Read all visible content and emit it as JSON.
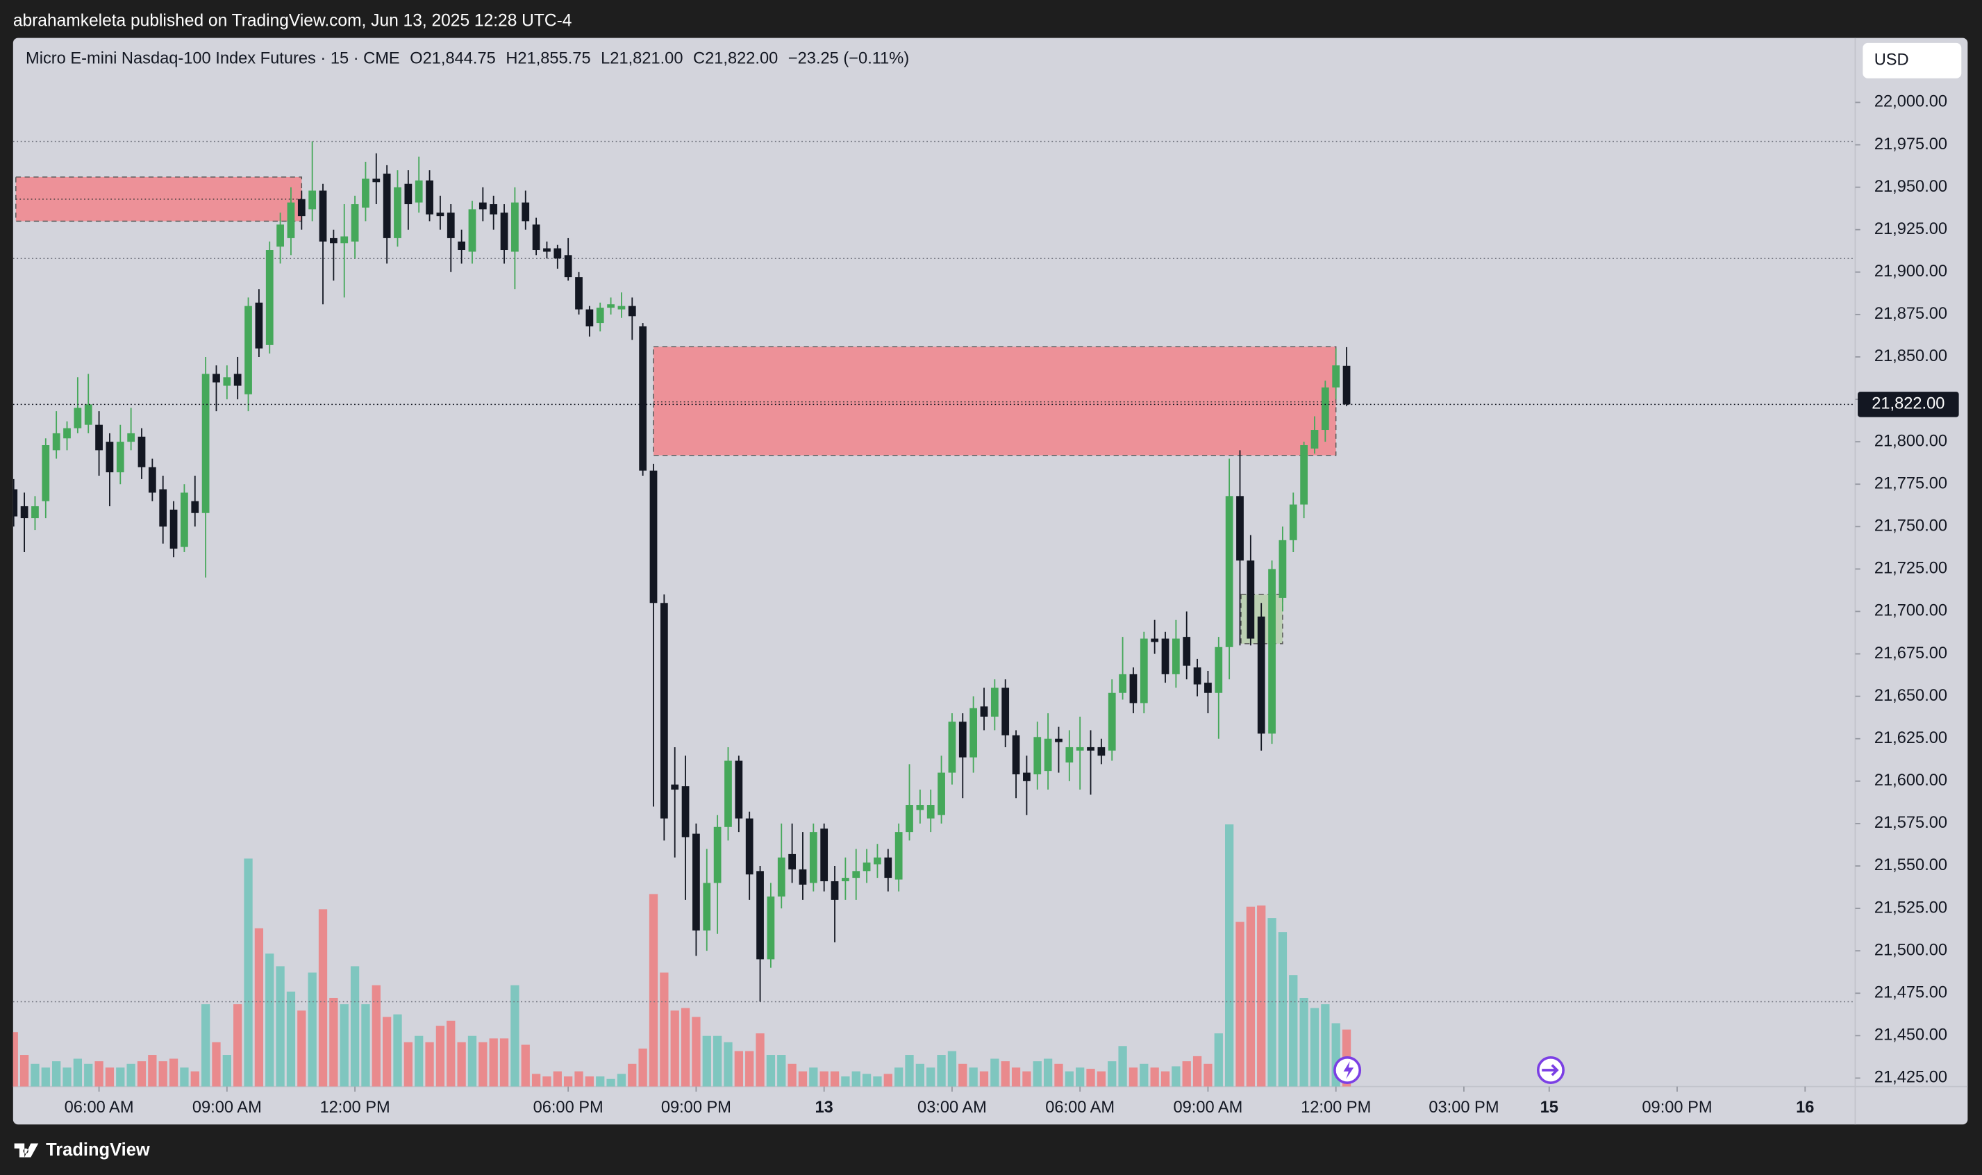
{
  "header": {
    "byline": "abrahamkeleta published on TradingView.com, Jun 13, 2025 12:28 UTC-4",
    "footer": "TradingView",
    "currency": "USD"
  },
  "chart_data": {
    "type": "candlestick",
    "title": "Micro E-mini Nasdaq-100 Index Futures · 15 · CME",
    "legend": {
      "open": "O21,844.75",
      "high": "H21,855.75",
      "low": "L21,821.00",
      "close": "C21,822.00",
      "change": "−23.25 (−0.11%)"
    },
    "up_color": "#45a85a",
    "down_color": "#131722",
    "volume_up_color": "#7fc6bf",
    "volume_down_color": "#e98a8d",
    "open": [
      21772,
      21762,
      21755,
      21765,
      21795,
      21802,
      21808,
      21810,
      21810,
      21800,
      21782,
      21800,
      21803,
      21785,
      21772,
      21760,
      21738,
      21765,
      21758,
      21840,
      21833,
      21840,
      21828,
      21882,
      21857,
      21915,
      21920,
      21943,
      21937,
      21948,
      21920,
      21917,
      21918,
      21938,
      21955,
      21958,
      21920,
      21952,
      21941,
      21954,
      21935,
      21935,
      21918,
      21912,
      21941,
      21940,
      21935,
      21912,
      21941,
      21928,
      21914,
      21914,
      21910,
      21897,
      21878,
      21870,
      21879,
      21878,
      21880,
      21868,
      21783,
      21705,
      21598,
      21597,
      21569,
      21512,
      21540,
      21573,
      21612,
      21578,
      21547,
      21495,
      21532,
      21557,
      21548,
      21540,
      21572,
      21541,
      21541,
      21543,
      21547,
      21551,
      21555,
      21542,
      21570,
      21583,
      21578,
      21580,
      21605,
      21635,
      21614,
      21644,
      21638,
      21655,
      21627,
      21605,
      21604,
      21606,
      21625,
      21611,
      21618,
      21620,
      21620,
      21618,
      21652,
      21663,
      21646,
      21684,
      21684,
      21663,
      21685,
      21667,
      21658,
      21652,
      21679,
      21768,
      21730,
      21697,
      21628,
      21708,
      21742,
      21763,
      21796,
      21807,
      21832,
      21844.75
    ],
    "high": [
      21778,
      21770,
      21768,
      21802,
      21818,
      21812,
      21838,
      21840,
      21818,
      21805,
      21810,
      21820,
      21808,
      21790,
      21780,
      21765,
      21775,
      21780,
      21850,
      21845,
      21845,
      21850,
      21885,
      21890,
      21918,
      21935,
      21950,
      21948,
      21977,
      21952,
      21925,
      21940,
      21945,
      21965,
      21970,
      21963,
      21960,
      21960,
      21968,
      21960,
      21945,
      21940,
      21925,
      21942,
      21950,
      21945,
      21940,
      21950,
      21948,
      21932,
      21918,
      21916,
      21920,
      21900,
      21880,
      21882,
      21885,
      21888,
      21885,
      21870,
      21787,
      21710,
      21620,
      21615,
      21575,
      21560,
      21580,
      21620,
      21615,
      21582,
      21550,
      21540,
      21575,
      21575,
      21570,
      21575,
      21575,
      21550,
      21555,
      21560,
      21560,
      21563,
      21560,
      21575,
      21610,
      21595,
      21595,
      21615,
      21640,
      21640,
      21650,
      21655,
      21660,
      21660,
      21630,
      21615,
      21635,
      21640,
      21632,
      21630,
      21638,
      21630,
      21625,
      21660,
      21685,
      21667,
      21688,
      21695,
      21688,
      21695,
      21700,
      21672,
      21665,
      21685,
      21790,
      21795,
      21745,
      21705,
      21730,
      21750,
      21770,
      21800,
      21815,
      21836,
      21855,
      21855.75
    ],
    "low": [
      21750,
      21735,
      21748,
      21755,
      21790,
      21795,
      21805,
      21805,
      21780,
      21762,
      21775,
      21795,
      21778,
      21765,
      21740,
      21732,
      21735,
      21750,
      21720,
      21818,
      21825,
      21825,
      21818,
      21850,
      21852,
      21905,
      21910,
      21925,
      21930,
      21881,
      21895,
      21885,
      21908,
      21930,
      21940,
      21905,
      21915,
      21925,
      21935,
      21930,
      21925,
      21900,
      21905,
      21905,
      21930,
      21925,
      21905,
      21890,
      21925,
      21910,
      21908,
      21902,
      21895,
      21875,
      21862,
      21865,
      21875,
      21873,
      21860,
      21780,
      21585,
      21565,
      21555,
      21530,
      21497,
      21500,
      21510,
      21565,
      21570,
      21530,
      21470,
      21490,
      21525,
      21540,
      21530,
      21535,
      21535,
      21505,
      21530,
      21530,
      21540,
      21543,
      21535,
      21535,
      21565,
      21575,
      21570,
      21575,
      21598,
      21590,
      21605,
      21630,
      21630,
      21620,
      21590,
      21580,
      21595,
      21595,
      21605,
      21600,
      21595,
      21592,
      21610,
      21612,
      21648,
      21640,
      21640,
      21675,
      21658,
      21655,
      21660,
      21650,
      21640,
      21625,
      21660,
      21680,
      21680,
      21618,
      21622,
      21700,
      21735,
      21755,
      21793,
      21800,
      21825,
      21821
    ],
    "close": [
      21756,
      21755,
      21762,
      21798,
      21805,
      21808,
      21820,
      21822,
      21795,
      21782,
      21800,
      21805,
      21785,
      21770,
      21750,
      21737,
      21770,
      21758,
      21840,
      21835,
      21838,
      21833,
      21880,
      21855,
      21913,
      21928,
      21941,
      21933,
      21948,
      21918,
      21917,
      21921,
      21940,
      21955,
      21953,
      21920,
      21950,
      21940,
      21954,
      21934,
      21933,
      21920,
      21913,
      21937,
      21937,
      21934,
      21913,
      21941,
      21930,
      21913,
      21912,
      21908,
      21897,
      21878,
      21868,
      21879,
      21881,
      21880,
      21874,
      21783,
      21705,
      21578,
      21595,
      21567,
      21512,
      21540,
      21573,
      21612,
      21578,
      21545,
      21495,
      21532,
      21555,
      21548,
      21539,
      21570,
      21541,
      21530,
      21543,
      21547,
      21552,
      21555,
      21543,
      21570,
      21586,
      21586,
      21586,
      21605,
      21635,
      21614,
      21643,
      21638,
      21655,
      21627,
      21604,
      21600,
      21626,
      21625,
      21623,
      21620,
      21620,
      21618,
      21615,
      21652,
      21663,
      21646,
      21684,
      21682,
      21663,
      21684,
      21668,
      21657,
      21652,
      21679,
      21768,
      21730,
      21684,
      21628,
      21725,
      21742,
      21763,
      21798,
      21807,
      21832,
      21845,
      21822
    ],
    "volume": [
      43,
      25,
      18,
      15,
      20,
      15,
      22,
      18,
      20,
      15,
      15,
      18,
      20,
      25,
      20,
      22,
      15,
      12,
      65,
      35,
      25,
      65,
      180,
      125,
      105,
      95,
      75,
      60,
      90,
      140,
      70,
      65,
      95,
      65,
      80,
      55,
      57,
      35,
      40,
      35,
      48,
      52,
      35,
      40,
      35,
      38,
      38,
      80,
      33,
      10,
      8,
      12,
      8,
      12,
      8,
      8,
      6,
      10,
      18,
      30,
      152,
      90,
      60,
      62,
      55,
      40,
      40,
      35,
      28,
      28,
      42,
      25,
      25,
      18,
      12,
      15,
      12,
      12,
      8,
      12,
      10,
      8,
      10,
      15,
      25,
      18,
      15,
      25,
      28,
      18,
      15,
      12,
      22,
      20,
      15,
      12,
      20,
      22,
      18,
      12,
      15,
      14,
      12,
      20,
      32,
      15,
      18,
      15,
      12,
      16,
      20,
      24,
      18,
      42,
      207,
      130,
      142,
      143,
      133,
      122,
      88,
      70,
      62,
      65,
      50,
      45
    ],
    "xlim": [
      -0.06,
      172.7
    ],
    "xticks": [
      {
        "value": 8,
        "label": "06:00 AM"
      },
      {
        "value": 20,
        "label": "09:00 AM"
      },
      {
        "value": 32,
        "label": "12:00 PM"
      },
      {
        "value": 52,
        "label": "06:00 PM"
      },
      {
        "value": 64,
        "label": "09:00 PM"
      },
      {
        "value": 76,
        "label": "13"
      },
      {
        "value": 88,
        "label": "03:00 AM"
      },
      {
        "value": 100,
        "label": "06:00 AM"
      },
      {
        "value": 112,
        "label": "09:00 AM"
      },
      {
        "value": 124,
        "label": "12:00 PM"
      },
      {
        "value": 136,
        "label": "03:00 PM"
      },
      {
        "value": 144,
        "label": "15"
      },
      {
        "value": 156,
        "label": "09:00 PM"
      },
      {
        "value": 168,
        "label": "16"
      }
    ],
    "ylim": [
      21420,
      22038
    ],
    "yticks": [
      {
        "value": 21425,
        "label": "21,425.00"
      },
      {
        "value": 21450,
        "label": "21,450.00"
      },
      {
        "value": 21475,
        "label": "21,475.00"
      },
      {
        "value": 21500,
        "label": "21,500.00"
      },
      {
        "value": 21525,
        "label": "21,525.00"
      },
      {
        "value": 21550,
        "label": "21,550.00"
      },
      {
        "value": 21575,
        "label": "21,575.00"
      },
      {
        "value": 21600,
        "label": "21,600.00"
      },
      {
        "value": 21625,
        "label": "21,625.00"
      },
      {
        "value": 21650,
        "label": "21,650.00"
      },
      {
        "value": 21675,
        "label": "21,675.00"
      },
      {
        "value": 21700,
        "label": "21,700.00"
      },
      {
        "value": 21725,
        "label": "21,725.00"
      },
      {
        "value": 21750,
        "label": "21,750.00"
      },
      {
        "value": 21775,
        "label": "21,775.00"
      },
      {
        "value": 21800,
        "label": "21,800.00"
      },
      {
        "value": 21825,
        "label": "21,825.00"
      },
      {
        "value": 21850,
        "label": "21,850.00"
      },
      {
        "value": 21875,
        "label": "21,875.00"
      },
      {
        "value": 21900,
        "label": "21,900.00"
      },
      {
        "value": 21925,
        "label": "21,925.00"
      },
      {
        "value": 21950,
        "label": "21,950.00"
      },
      {
        "value": 21975,
        "label": "21,975.00"
      },
      {
        "value": 22000,
        "label": "22,000.00"
      }
    ],
    "levels": [
      21977,
      21908,
      21470
    ],
    "last_price": 21822,
    "last_price_label": "21,822.00",
    "zones": [
      {
        "x0": 0.2,
        "x1": 27,
        "top": 21956,
        "bottom": 21930,
        "mid": 21943,
        "color": "#ef8a90"
      },
      {
        "x0": 60,
        "x1": 124,
        "top": 21856,
        "bottom": 21792,
        "mid": 21823.5,
        "color": "#ef8a90"
      },
      {
        "x0": 115.1,
        "x1": 119,
        "top": 21710,
        "bottom": 21681,
        "color": "#b9cfae"
      }
    ]
  }
}
